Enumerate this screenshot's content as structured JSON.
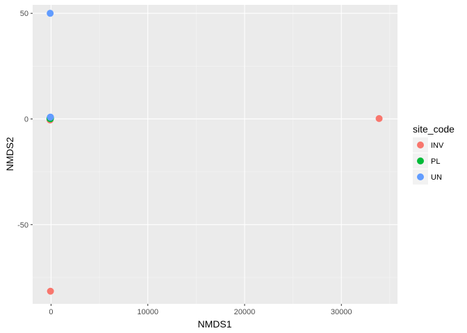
{
  "chart_data": {
    "type": "scatter",
    "title": "",
    "xlabel": "NMDS1",
    "ylabel": "NMDS2",
    "xlim": [
      -1900,
      35800
    ],
    "ylim": [
      -87.5,
      54
    ],
    "x_ticks": [
      0,
      10000,
      20000,
      30000
    ],
    "x_tick_labels": [
      "0",
      "10000",
      "20000",
      "30000"
    ],
    "y_ticks": [
      -50,
      0,
      50
    ],
    "y_tick_labels": [
      "-50",
      "0",
      "50"
    ],
    "grid": true,
    "legend_position": "right",
    "legend_title": "site_code",
    "series": [
      {
        "name": "INV",
        "color": "#F8766D",
        "points": [
          [
            -100,
            -0.5
          ],
          [
            -80,
            0.3
          ],
          [
            33900,
            0.2
          ],
          [
            -60,
            -81.5
          ]
        ]
      },
      {
        "name": "PL",
        "color": "#00BA38",
        "points": [
          [
            -120,
            0.2
          ],
          [
            -90,
            0.6
          ],
          [
            -70,
            0.1
          ],
          [
            -50,
            0.4
          ]
        ]
      },
      {
        "name": "UN",
        "color": "#619CFF",
        "points": [
          [
            -90,
            50
          ],
          [
            -80,
            0.8
          ],
          [
            -60,
            0.9
          ]
        ]
      }
    ]
  },
  "legend": {
    "title": "site_code",
    "items": [
      {
        "label": "INV",
        "color": "#F8766D"
      },
      {
        "label": "PL",
        "color": "#00BA38"
      },
      {
        "label": "UN",
        "color": "#619CFF"
      }
    ]
  }
}
